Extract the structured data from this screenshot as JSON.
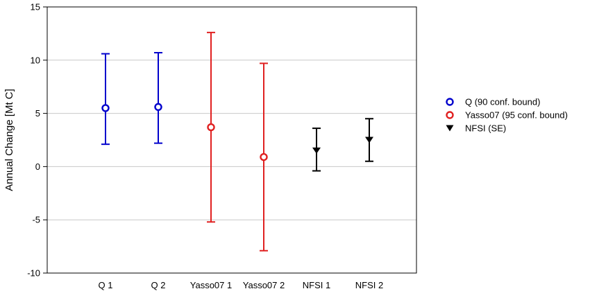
{
  "chart_data": {
    "type": "scatter",
    "title": "",
    "xlabel": "",
    "ylabel": "Annual Change  [Mt C]",
    "categories": [
      "Q 1",
      "Q 2",
      "Yasso07 1",
      "Yasso07 2",
      "NFSI 1",
      "NFSI 2"
    ],
    "ylim": [
      -10,
      15
    ],
    "yticks": [
      -10,
      -5,
      0,
      5,
      10,
      15
    ],
    "grid": true,
    "legend_position": "right",
    "series": [
      {
        "name": "Q (90 conf. bound)",
        "marker": "open-circle",
        "color": "#0000cc",
        "points": [
          {
            "category": "Q 1",
            "y": 5.5,
            "lower": 2.1,
            "upper": 10.6
          },
          {
            "category": "Q 2",
            "y": 5.6,
            "lower": 2.2,
            "upper": 10.7
          }
        ]
      },
      {
        "name": "Yasso07 (95 conf. bound)",
        "marker": "open-circle",
        "color": "#e02020",
        "points": [
          {
            "category": "Yasso07 1",
            "y": 3.7,
            "lower": -5.2,
            "upper": 12.6
          },
          {
            "category": "Yasso07 2",
            "y": 0.9,
            "lower": -7.9,
            "upper": 9.7
          }
        ]
      },
      {
        "name": "NFSI (SE)",
        "marker": "filled-triangle-down",
        "color": "#000000",
        "points": [
          {
            "category": "NFSI 1",
            "y": 1.5,
            "lower": -0.4,
            "upper": 3.6
          },
          {
            "category": "NFSI 2",
            "y": 2.5,
            "lower": 0.5,
            "upper": 4.5
          }
        ]
      }
    ]
  }
}
